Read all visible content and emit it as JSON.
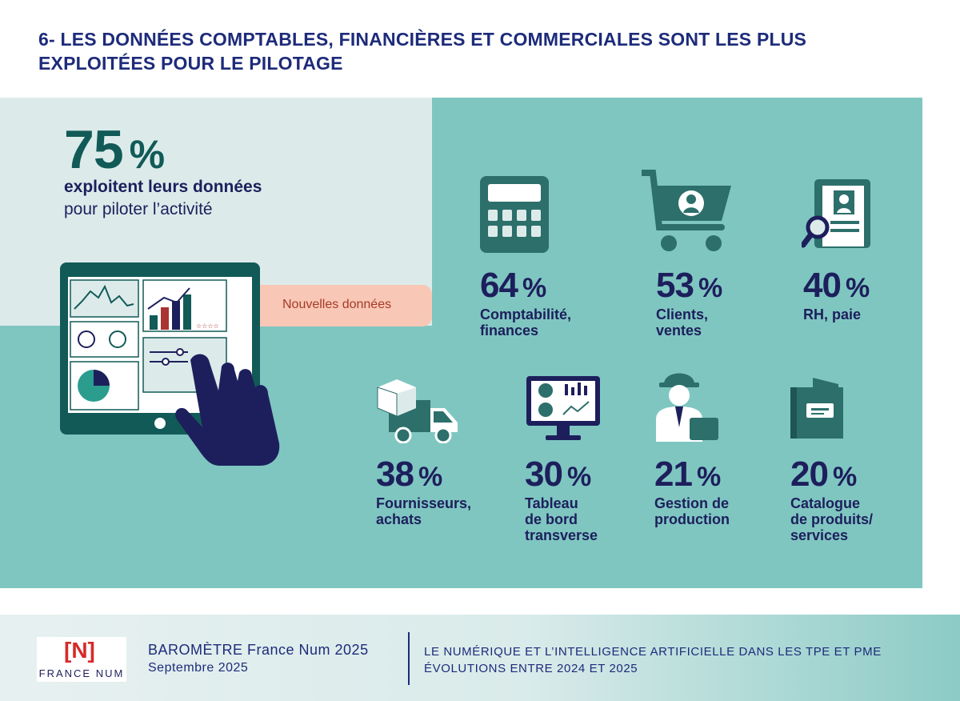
{
  "header": {
    "title_line1": "6- LES DONNÉES COMPTABLES, FINANCIÈRES ET COMMERCIALES SONT LES PLUS",
    "title_line2": "EXPLOITÉES POUR LE PILOTAGE"
  },
  "main": {
    "headline_value": "75",
    "headline_pct": "%",
    "headline_bold": "exploitent leurs données",
    "headline_regular": "pour piloter l’activité",
    "tag": "Nouvelles données",
    "tablet_stars": "☆☆☆☆"
  },
  "stats": [
    {
      "value": "64",
      "pct": "%",
      "label": "Comptabilité,\nfinances",
      "icon": "calculator-icon"
    },
    {
      "value": "53",
      "pct": "%",
      "label": "Clients,\nventes",
      "icon": "cart-icon"
    },
    {
      "value": "40",
      "pct": "%",
      "label": "RH, paie",
      "icon": "hr-document-icon"
    },
    {
      "value": "38",
      "pct": "%",
      "label": "Fournisseurs,\nachats",
      "icon": "delivery-truck-icon"
    },
    {
      "value": "30",
      "pct": "%",
      "label": "Tableau\nde bord\ntransverse",
      "icon": "dashboard-monitor-icon"
    },
    {
      "value": "21",
      "pct": "%",
      "label": "Gestion de\nproduction",
      "icon": "worker-icon"
    },
    {
      "value": "20",
      "pct": "%",
      "label": "Catalogue\nde produits/\nservices",
      "icon": "catalogue-icon"
    }
  ],
  "footer": {
    "logo_mark": "[N]",
    "logo_text": "FRANCE NUM",
    "title": "BAROMÈTRE France Num 2025",
    "date": "Septembre 2025",
    "right_line1": "LE NUMÉRIQUE ET L’INTELLIGENCE ARTIFICIELLE DANS LES TPE ET PME",
    "right_line2": "ÉVOLUTIONS ENTRE 2024 ET 2025"
  },
  "colors": {
    "navy": "#1d1f5c",
    "teal_dark": "#115a57",
    "teal_panel": "#7fc6c1",
    "teal_light": "#dcebea",
    "tag_bg": "#f9c7b5",
    "tag_text": "#a63a2a",
    "icon_fill": "#2c6f6b"
  }
}
